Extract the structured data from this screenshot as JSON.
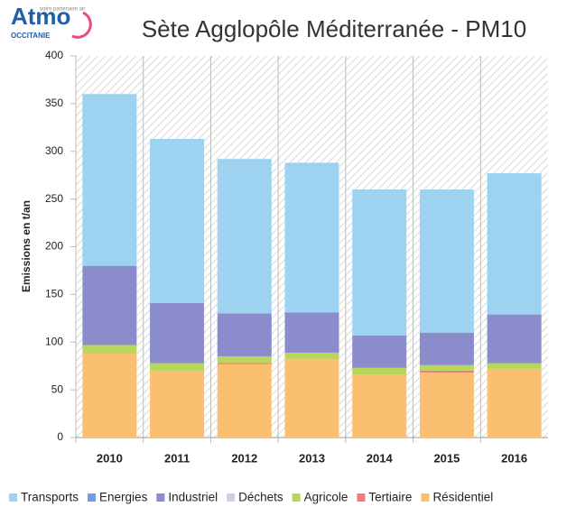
{
  "logo": {
    "name": "Atmo",
    "region": "OCCITANIE",
    "tagline": "votre partenaire air"
  },
  "chart_data": {
    "type": "stacked_bar",
    "title": "Sète Agglopôle Méditerranée - PM10",
    "y_label": "Emissions en t/an",
    "categories": [
      "2010",
      "2011",
      "2012",
      "2013",
      "2014",
      "2015",
      "2016"
    ],
    "ylim": [
      0,
      400
    ],
    "yticks": [
      0,
      50,
      100,
      150,
      200,
      250,
      300,
      350,
      400
    ],
    "grid": true,
    "legend": "bottom",
    "series": [
      {
        "name": "Transports",
        "color": "#9dd3f0",
        "values": [
          180,
          172,
          162,
          157,
          153,
          150,
          148
        ]
      },
      {
        "name": "Energies",
        "color": "#6f9bea",
        "values": [
          0,
          0,
          0,
          0,
          0,
          0,
          0
        ]
      },
      {
        "name": "Industriel",
        "color": "#8a8ccc",
        "values": [
          83,
          63,
          45,
          42,
          34,
          34,
          51
        ]
      },
      {
        "name": "Déchets",
        "color": "#c9d3e8",
        "values": [
          0,
          0,
          0,
          0,
          0,
          0,
          0
        ]
      },
      {
        "name": "Agricole",
        "color": "#b8d65a",
        "values": [
          9,
          8,
          7,
          7,
          7,
          6,
          6
        ]
      },
      {
        "name": "Tertiaire",
        "color": "#f07c7c",
        "values": [
          0,
          0,
          1,
          0,
          0,
          2,
          0
        ]
      },
      {
        "name": "Résidentiel",
        "color": "#fbbf72",
        "values": [
          88,
          70,
          77,
          82,
          66,
          68,
          72
        ]
      }
    ]
  }
}
